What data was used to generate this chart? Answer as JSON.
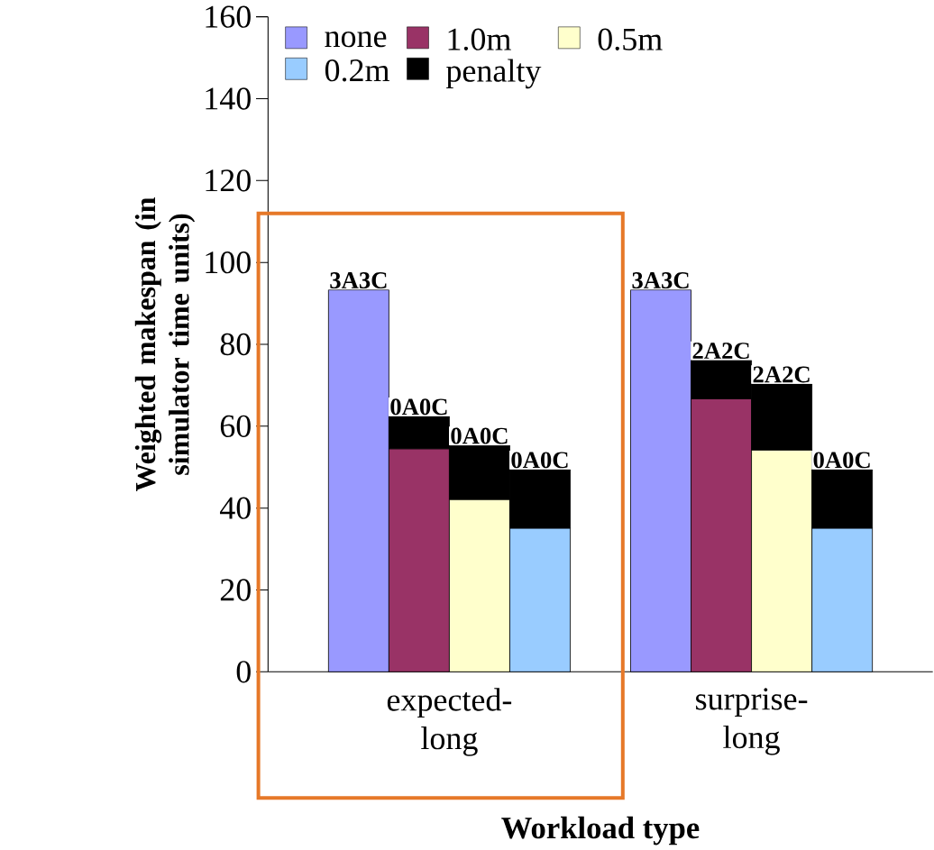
{
  "chart_data": {
    "type": "bar",
    "stacked": true,
    "xlabel": "Workload type",
    "ylabel": "Weighted makespan (in simulator time units)",
    "categories": [
      null,
      null,
      null,
      null,
      null,
      null,
      null,
      null,
      null,
      null,
      null
    ],
    "ylim": [
      0,
      160
    ],
    "yticks": [
      0,
      20,
      40,
      60,
      80,
      100,
      120,
      140,
      160
    ],
    "grid": false,
    "legend": "top left",
    "series": [
      {
        "name": "none",
        "color": "#9999ff",
        "values": [
          null,
          93.3,
          null,
          null,
          null,
          null,
          93.3,
          null,
          null,
          null,
          null
        ]
      },
      {
        "name": "1.0m",
        "color": "#993366",
        "values": [
          null,
          null,
          54.5,
          null,
          null,
          null,
          null,
          66.7,
          null,
          null,
          null
        ]
      },
      {
        "name": "0.5m",
        "color": "#ffffcc",
        "values": [
          null,
          null,
          null,
          42.1,
          null,
          null,
          null,
          null,
          54.2,
          null,
          null
        ]
      },
      {
        "name": "0.2m",
        "color": "#99ccff",
        "values": [
          null,
          null,
          null,
          null,
          35.1,
          null,
          null,
          null,
          null,
          35.1,
          null
        ]
      },
      {
        "name": "penalty",
        "color": "#000000",
        "values": [
          null,
          null,
          7.9,
          13.2,
          14.3,
          null,
          null,
          9.4,
          16.1,
          14.3,
          null
        ]
      }
    ],
    "annotations": [
      "3A3C",
      "0A0C",
      "0A0C",
      "0A0C",
      "3A3C",
      "2A2C",
      "2A2C",
      "0A0C",
      "expected-long",
      "surprise-long"
    ]
  }
}
